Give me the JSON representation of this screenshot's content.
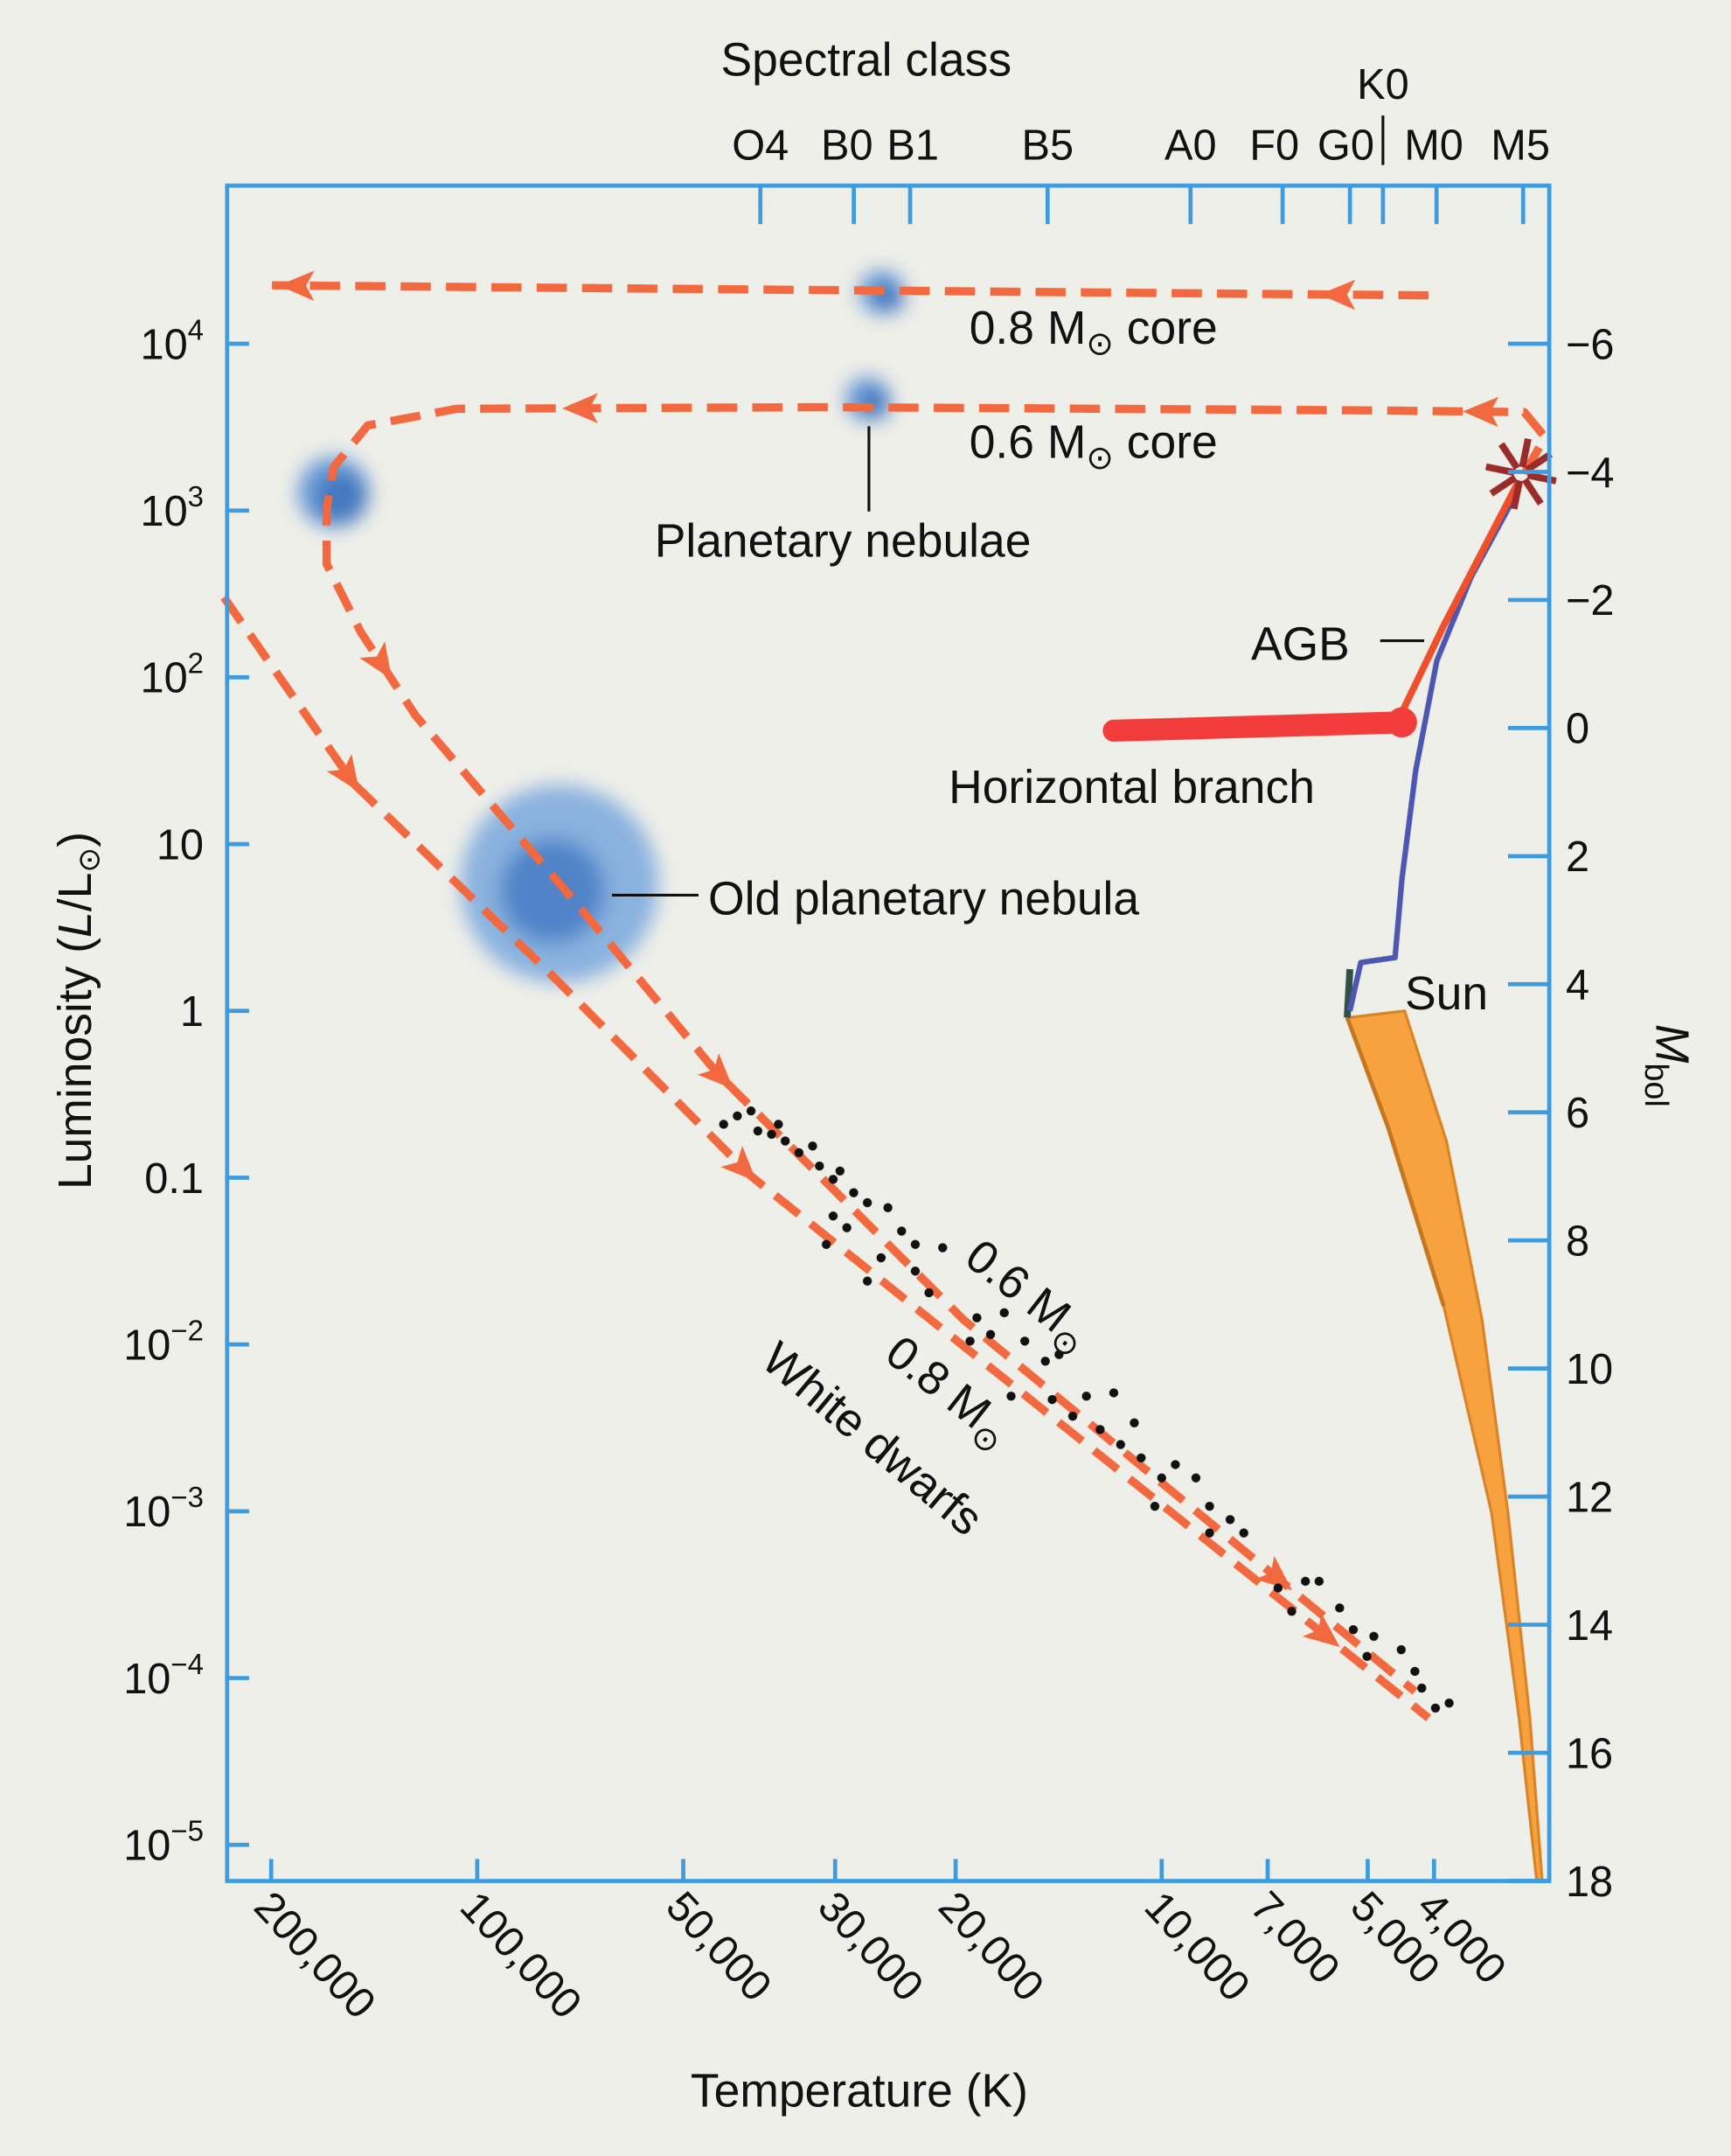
{
  "chart_data": {
    "type": "scatter",
    "title": "",
    "top_axis_title": "Spectral class",
    "xlabel": "Temperature (K)",
    "ylabel": {
      "prefix": "Luminosity (",
      "L": "L",
      "mid": "/L",
      "sun": "⊙",
      "suffix": ")"
    },
    "y2label": {
      "M": "M",
      "sub": "bol"
    },
    "x_scale": "log, reversed",
    "y_scale": "log",
    "x_unit_of_series": "log10 T (K)",
    "y_unit_of_series": "log10 L/Lsun",
    "xlim_K": [
      250000,
      2700
    ],
    "ylim_L": [
      5e-06,
      100000.0
    ],
    "x_ticks": [
      {
        "value": 200000,
        "label": "200,000"
      },
      {
        "value": 100000,
        "label": "100,000"
      },
      {
        "value": 50000,
        "label": "50,000"
      },
      {
        "value": 30000,
        "label": "30,000"
      },
      {
        "value": 20000,
        "label": "20,000"
      },
      {
        "value": 10000,
        "label": "10,000"
      },
      {
        "value": 7000,
        "label": "7,000"
      },
      {
        "value": 5000,
        "label": "5,000"
      },
      {
        "value": 4000,
        "label": "4,000"
      }
    ],
    "y_ticks": [
      {
        "log": 4,
        "base": "10",
        "exp": "4"
      },
      {
        "log": 3,
        "base": "10",
        "exp": "3"
      },
      {
        "log": 2,
        "base": "10",
        "exp": "2"
      },
      {
        "log": 1,
        "base": "10",
        "exp": ""
      },
      {
        "log": 0,
        "base": "1",
        "exp": ""
      },
      {
        "log": -1,
        "base": "0.1",
        "exp": ""
      },
      {
        "log": -2,
        "base": "10",
        "exp": "−2"
      },
      {
        "log": -3,
        "base": "10",
        "exp": "−3"
      },
      {
        "log": -4,
        "base": "10",
        "exp": "−4"
      },
      {
        "log": -5,
        "base": "10",
        "exp": "−5"
      }
    ],
    "y2_ticks": [
      {
        "value": -6,
        "label": "−6"
      },
      {
        "value": -4,
        "label": "−4"
      },
      {
        "value": -2,
        "label": "−2"
      },
      {
        "value": 0,
        "label": "0"
      },
      {
        "value": 2,
        "label": "2"
      },
      {
        "value": 4,
        "label": "4"
      },
      {
        "value": 6,
        "label": "6"
      },
      {
        "value": 8,
        "label": "8"
      },
      {
        "value": 10,
        "label": "10"
      },
      {
        "value": 12,
        "label": "12"
      },
      {
        "value": 14,
        "label": "14"
      },
      {
        "value": 16,
        "label": "16"
      },
      {
        "value": 18,
        "label": "18"
      }
    ],
    "spectral_classes": [
      "O4",
      "B0",
      "B1",
      "B5",
      "A0",
      "F0",
      "G0",
      "K0",
      "M0",
      "M5"
    ],
    "series": {
      "track_0_6_core": [
        [
          3.47,
          3.22
        ],
        [
          3.44,
          3.44
        ],
        [
          3.47,
          3.59
        ],
        [
          3.69,
          3.6
        ],
        [
          4.49,
          3.62
        ],
        [
          5.03,
          3.61
        ],
        [
          5.16,
          3.51
        ],
        [
          5.21,
          3.26
        ],
        [
          5.22,
          3.01
        ],
        [
          5.22,
          2.68
        ],
        [
          5.17,
          2.27
        ],
        [
          5.09,
          1.77
        ],
        [
          4.85,
          0.62
        ],
        [
          4.65,
          -0.37
        ],
        [
          4.29,
          -1.85
        ],
        [
          3.63,
          -4.08
        ]
      ],
      "track_0_8_core_top": [
        [
          3.61,
          4.29
        ],
        [
          5.3,
          4.35
        ]
      ],
      "track_0_8_cooling": [
        [
          5.37,
          2.48
        ],
        [
          5.18,
          1.36
        ],
        [
          4.89,
          0.21
        ],
        [
          4.6,
          -0.99
        ],
        [
          3.61,
          -4.24
        ]
      ],
      "red_giant_branch": [
        [
          3.725,
          0.0
        ],
        [
          3.709,
          0.29
        ],
        [
          3.659,
          0.32
        ],
        [
          3.649,
          0.79
        ],
        [
          3.629,
          1.44
        ],
        [
          3.598,
          2.1
        ],
        [
          3.548,
          2.6
        ],
        [
          3.478,
          3.13
        ]
      ],
      "agb": [
        [
          3.649,
          1.79
        ],
        [
          3.588,
          2.31
        ],
        [
          3.478,
          3.18
        ]
      ],
      "horizontal_branch": [
        [
          4.07,
          1.68
        ],
        [
          3.649,
          1.73
        ]
      ],
      "main_sequence_hot_edge": [
        [
          3.729,
          -0.04
        ],
        [
          3.669,
          -0.7
        ],
        [
          3.588,
          -1.77
        ],
        [
          3.518,
          -3.01
        ],
        [
          3.478,
          -4.24
        ],
        [
          3.452,
          -5.22
        ]
      ],
      "main_sequence_cool_edge": [
        [
          3.645,
          0.0
        ],
        [
          3.584,
          -0.78
        ],
        [
          3.532,
          -1.85
        ],
        [
          3.494,
          -3.01
        ],
        [
          3.462,
          -4.24
        ],
        [
          3.444,
          -5.22
        ]
      ],
      "agb_tip": [
        3.475,
        3.22
      ],
      "planetary_nebulae": [
        [
          4.41,
          4.31
        ],
        [
          4.43,
          3.67
        ],
        [
          5.21,
          3.11
        ]
      ],
      "old_planetary_nebula": [
        4.89,
        0.72
      ],
      "white_dwarfs": [
        [
          4.64,
          -0.68
        ],
        [
          4.62,
          -0.63
        ],
        [
          4.6,
          -0.6
        ],
        [
          4.59,
          -0.72
        ],
        [
          4.57,
          -0.74
        ],
        [
          4.56,
          -0.68
        ],
        [
          4.55,
          -0.78
        ],
        [
          4.53,
          -0.85
        ],
        [
          4.51,
          -0.81
        ],
        [
          4.5,
          -0.93
        ],
        [
          4.48,
          -1.01
        ],
        [
          4.47,
          -0.96
        ],
        [
          4.45,
          -1.09
        ],
        [
          4.43,
          -1.15
        ],
        [
          4.48,
          -1.23
        ],
        [
          4.46,
          -1.3
        ],
        [
          4.49,
          -1.4
        ],
        [
          4.4,
          -1.18
        ],
        [
          4.38,
          -1.32
        ],
        [
          4.36,
          -1.4
        ],
        [
          4.32,
          -1.42
        ],
        [
          4.43,
          -1.62
        ],
        [
          4.41,
          -1.48
        ],
        [
          4.36,
          -1.56
        ],
        [
          4.34,
          -1.69
        ],
        [
          4.27,
          -1.84
        ],
        [
          4.25,
          -1.94
        ],
        [
          4.23,
          -1.81
        ],
        [
          4.2,
          -1.98
        ],
        [
          4.17,
          -2.1
        ],
        [
          4.15,
          -2.06
        ],
        [
          4.28,
          -1.98
        ],
        [
          4.22,
          -2.31
        ],
        [
          4.16,
          -2.33
        ],
        [
          4.13,
          -2.43
        ],
        [
          4.11,
          -2.31
        ],
        [
          4.07,
          -2.29
        ],
        [
          4.09,
          -2.51
        ],
        [
          4.06,
          -2.6
        ],
        [
          4.04,
          -2.47
        ],
        [
          4.03,
          -2.68
        ],
        [
          4.0,
          -2.8
        ],
        [
          3.98,
          -2.72
        ],
        [
          3.95,
          -2.8
        ],
        [
          3.93,
          -2.97
        ],
        [
          3.9,
          -3.05
        ],
        [
          3.88,
          -3.13
        ],
        [
          4.01,
          -2.97
        ],
        [
          3.93,
          -3.13
        ],
        [
          3.83,
          -3.46
        ],
        [
          3.79,
          -3.42
        ],
        [
          3.77,
          -3.42
        ],
        [
          3.81,
          -3.6
        ],
        [
          3.74,
          -3.58
        ],
        [
          3.72,
          -3.71
        ],
        [
          3.69,
          -3.75
        ],
        [
          3.65,
          -3.83
        ],
        [
          3.7,
          -3.87
        ],
        [
          3.63,
          -3.96
        ],
        [
          3.62,
          -4.06
        ],
        [
          3.6,
          -4.18
        ],
        [
          3.58,
          -4.15
        ]
      ]
    },
    "annotations": {
      "core08": {
        "a": "0.8 M",
        "sun": "⊙",
        "b": " core"
      },
      "core06": {
        "a": "0.6 M",
        "sun": "⊙",
        "b": " core"
      },
      "planetary_nebulae": "Planetary nebulae",
      "agb": "AGB",
      "horizontal_branch": "Horizontal branch",
      "old_planetary_nebula": "Old planetary nebula",
      "sun": "Sun",
      "wd06": {
        "a": "0.6 M",
        "sun": "⊙"
      },
      "wd08": {
        "a": "0.8 M",
        "sun": "⊙"
      },
      "white_dwarfs": "White dwarfs"
    },
    "colors": {
      "axis": "#3d9be0",
      "track": "#f2683f",
      "rgb": "#4b57b0",
      "agb": "#ef4f2b",
      "hb": "#f23c3c",
      "ms": "#f7a23e",
      "nebula": "#3f7fd0"
    }
  }
}
